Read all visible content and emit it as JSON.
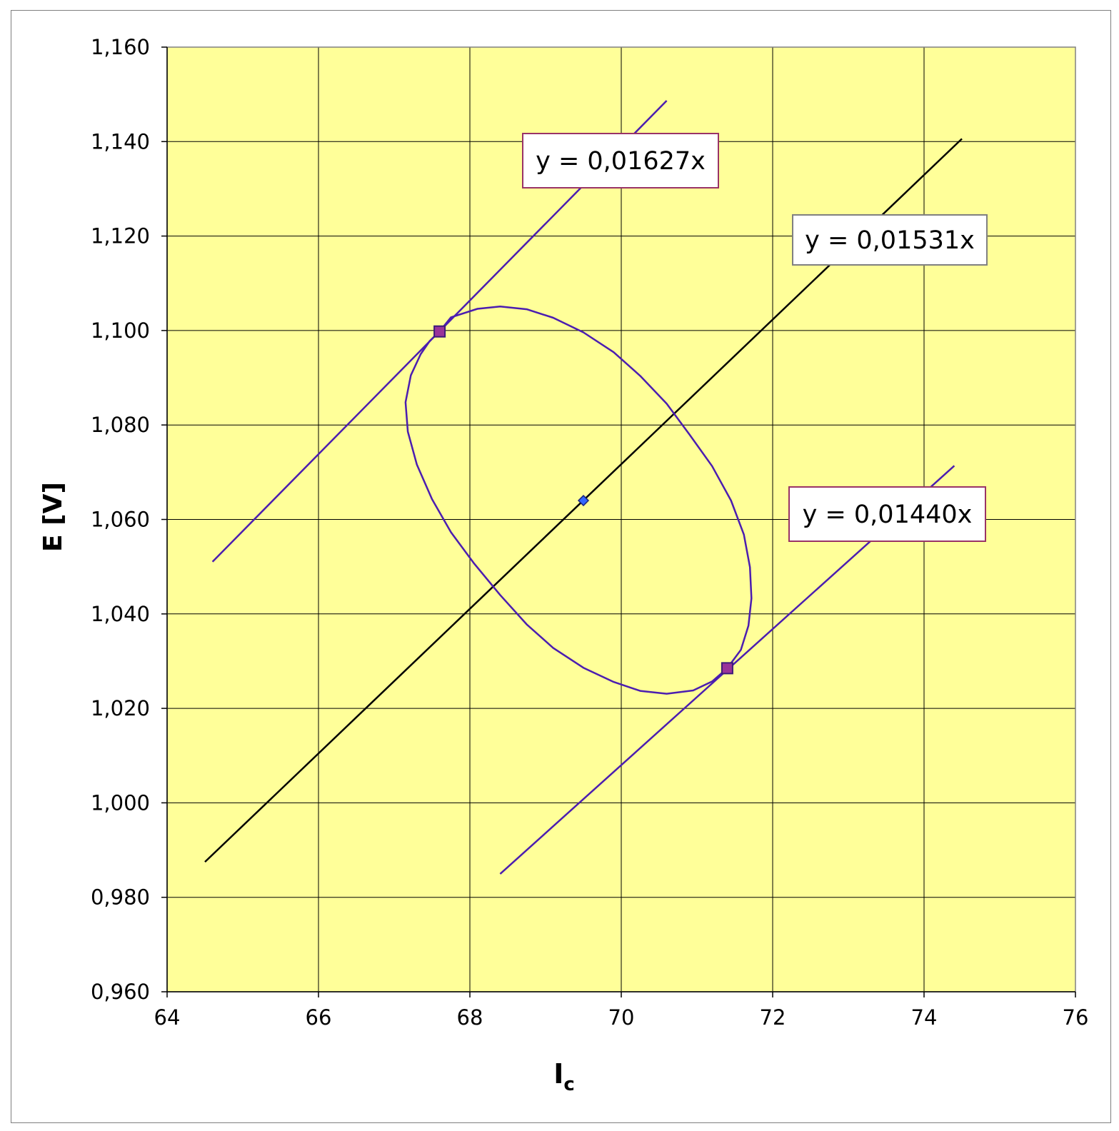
{
  "chart_data": {
    "type": "scatter",
    "xlabel": "I",
    "xlabel_sub": "c",
    "ylabel": "E  [V]",
    "xlim": [
      64,
      76
    ],
    "ylim": [
      0.96,
      1.16
    ],
    "x_ticks": [
      "64",
      "66",
      "68",
      "70",
      "72",
      "74",
      "76"
    ],
    "y_ticks": [
      "0,960",
      "0,980",
      "1,000",
      "1,020",
      "1,040",
      "1,060",
      "1,080",
      "1,100",
      "1,120",
      "1,140",
      "1,160"
    ],
    "x_tick_values": [
      64,
      66,
      68,
      70,
      72,
      74,
      76
    ],
    "y_tick_values": [
      0.96,
      0.98,
      1.0,
      1.02,
      1.04,
      1.06,
      1.08,
      1.1,
      1.12,
      1.14,
      1.16
    ],
    "grid": true,
    "legend": "none",
    "plot_background": "#ffff99",
    "series": [
      {
        "kind": "line",
        "color": "#000000",
        "slope": 0.01531,
        "x_range": [
          64.5,
          74.5
        ],
        "label": "y = 0,01531x",
        "label_border": "#808080"
      },
      {
        "kind": "line",
        "color": "#4b1db0",
        "slope": 0.01627,
        "x_range": [
          64.6,
          70.6
        ],
        "label": "y = 0,01627x",
        "label_border": "#993366"
      },
      {
        "kind": "line",
        "color": "#4b1db0",
        "slope": 0.0144,
        "x_range": [
          68.4,
          74.4
        ],
        "label": "y = 0,01440x",
        "label_border": "#993366"
      },
      {
        "kind": "ellipse",
        "color": "#4b1db0",
        "center": [
          69.5,
          1.064
        ],
        "points": [
          [
            67.6,
            1.0998
          ],
          [
            67.75,
            1.1028
          ],
          [
            68.1,
            1.1046
          ],
          [
            68.4,
            1.1051
          ],
          [
            68.75,
            1.1045
          ],
          [
            69.1,
            1.1027
          ],
          [
            69.5,
            1.0996
          ],
          [
            69.9,
            1.0954
          ],
          [
            70.25,
            1.0904
          ],
          [
            70.6,
            1.0845
          ],
          [
            70.9,
            1.078
          ],
          [
            71.2,
            1.0713
          ],
          [
            71.45,
            1.064
          ],
          [
            71.62,
            1.0568
          ],
          [
            71.7,
            1.0499
          ],
          [
            71.72,
            1.0433
          ],
          [
            71.68,
            1.0375
          ],
          [
            71.58,
            1.0324
          ],
          [
            71.4,
            1.0285
          ],
          [
            71.2,
            1.0257
          ],
          [
            70.95,
            1.0238
          ],
          [
            70.6,
            1.0231
          ],
          [
            70.25,
            1.0237
          ],
          [
            69.9,
            1.0256
          ],
          [
            69.5,
            1.0286
          ],
          [
            69.1,
            1.0328
          ],
          [
            68.75,
            1.0378
          ],
          [
            68.4,
            1.044
          ],
          [
            68.05,
            1.0508
          ],
          [
            67.75,
            1.0573
          ],
          [
            67.5,
            1.0643
          ],
          [
            67.3,
            1.0716
          ],
          [
            67.18,
            1.0786
          ],
          [
            67.15,
            1.0848
          ],
          [
            67.22,
            1.0905
          ],
          [
            67.35,
            1.095
          ],
          [
            67.47,
            1.0978
          ],
          [
            67.6,
            1.0998
          ]
        ]
      },
      {
        "kind": "points",
        "marker": "square",
        "color": "#993399",
        "edge": "#3d1a7a",
        "points": [
          [
            67.6,
            1.0998
          ],
          [
            71.4,
            1.0285
          ]
        ]
      },
      {
        "kind": "points",
        "marker": "diamond",
        "color": "#3366ff",
        "edge": "#1a237e",
        "points": [
          [
            69.5,
            1.064
          ]
        ]
      }
    ]
  }
}
